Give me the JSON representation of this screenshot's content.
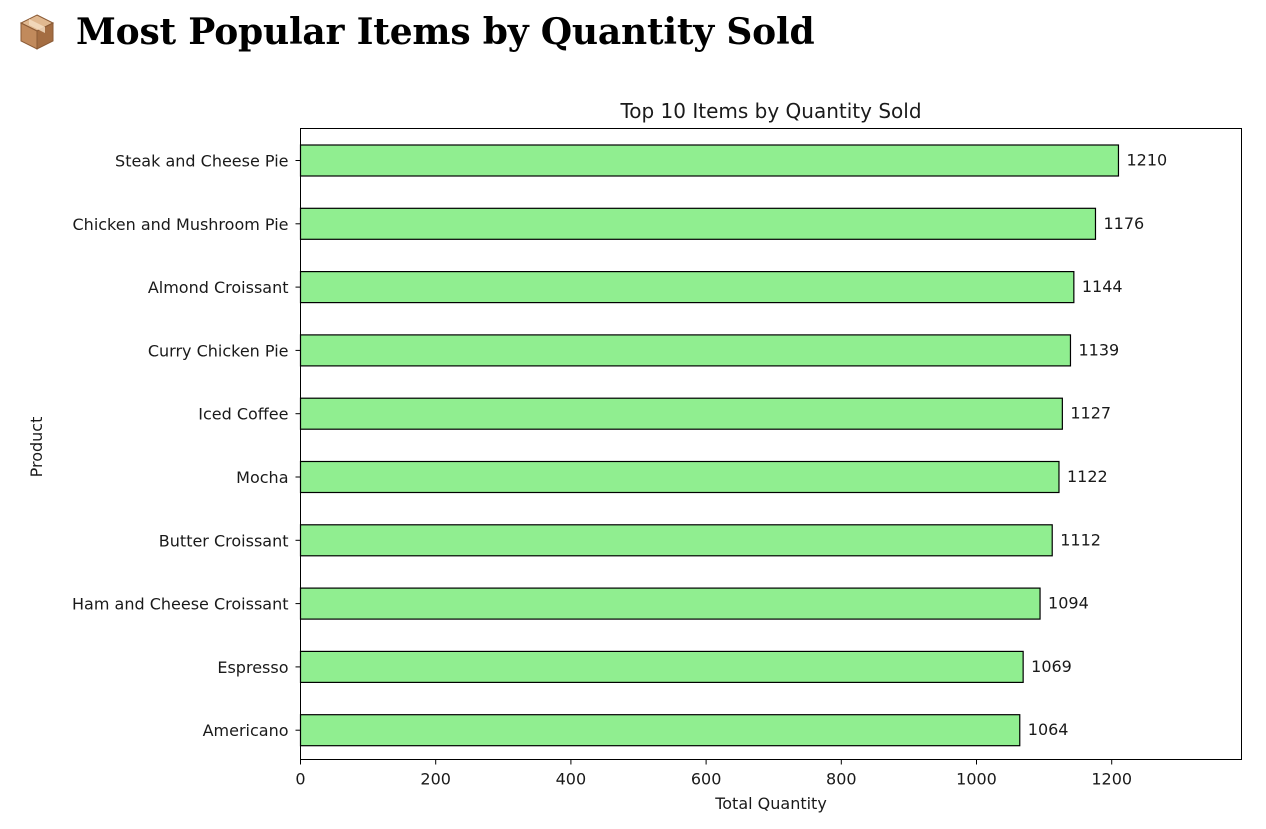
{
  "page": {
    "title": "Most Popular Items by Quantity Sold",
    "icon": "package-icon"
  },
  "chart_data": {
    "type": "bar",
    "orientation": "horizontal",
    "title": "Top 10 Items by Quantity Sold",
    "xlabel": "Total Quantity",
    "ylabel": "Product",
    "categories": [
      "Steak and Cheese Pie",
      "Chicken and Mushroom Pie",
      "Almond Croissant",
      "Curry Chicken Pie",
      "Iced Coffee",
      "Mocha",
      "Butter Croissant",
      "Ham and Cheese Croissant",
      "Espresso",
      "Americano"
    ],
    "values": [
      1210,
      1176,
      1144,
      1139,
      1127,
      1122,
      1112,
      1094,
      1069,
      1064
    ],
    "xlim": [
      0,
      1392
    ],
    "xticks": [
      0,
      200,
      400,
      600,
      800,
      1000,
      1200
    ],
    "bar_color": "#90ee90",
    "bar_edge_color": "#000000",
    "grid": false,
    "legend": "none"
  }
}
